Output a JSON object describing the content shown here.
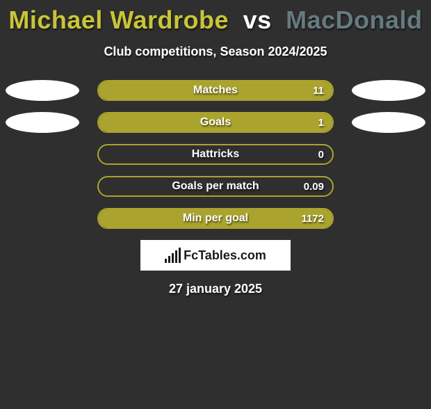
{
  "title": {
    "player1": "Michael Wardrobe",
    "vs": "vs",
    "player2": "MacDonald",
    "player1_color": "#c9c438",
    "player2_color": "#667a7f"
  },
  "subtitle": "Club competitions, Season 2024/2025",
  "colors": {
    "bar_border": "#aaa42e",
    "bar_fill": "#aaa42e",
    "pill_left": "#ffffff",
    "pill_right": "#ffffff",
    "background": "#2f2f2f"
  },
  "stats": [
    {
      "label": "Matches",
      "value": "11",
      "fill_pct": 100,
      "show_left_pill": true,
      "show_right_pill": true
    },
    {
      "label": "Goals",
      "value": "1",
      "fill_pct": 100,
      "show_left_pill": true,
      "show_right_pill": true
    },
    {
      "label": "Hattricks",
      "value": "0",
      "fill_pct": 0,
      "show_left_pill": false,
      "show_right_pill": false
    },
    {
      "label": "Goals per match",
      "value": "0.09",
      "fill_pct": 0,
      "show_left_pill": false,
      "show_right_pill": false
    },
    {
      "label": "Min per goal",
      "value": "1172",
      "fill_pct": 100,
      "show_left_pill": false,
      "show_right_pill": false
    }
  ],
  "logo": {
    "text": "FcTables.com"
  },
  "date": "27 january 2025"
}
